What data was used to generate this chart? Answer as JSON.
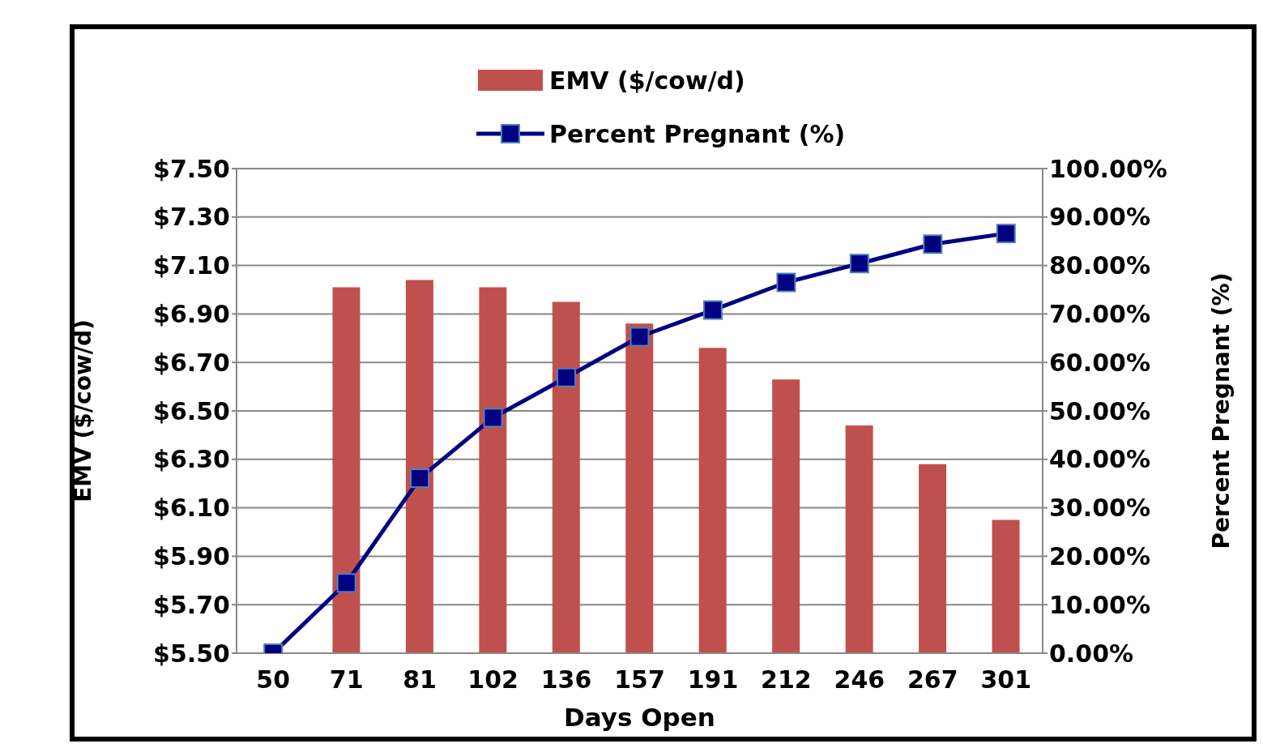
{
  "chart_data": {
    "type": "bar",
    "xlabel": "Days Open",
    "ylabel": "EMV ($/cow/d)",
    "y2label": "Percent Pregnant (%)",
    "categories": [
      "50",
      "71",
      "81",
      "102",
      "136",
      "157",
      "191",
      "212",
      "246",
      "267",
      "301"
    ],
    "series": [
      {
        "name": "EMV ($/cow/d)",
        "color": "#c0504d",
        "values": [
          null,
          7.01,
          7.04,
          7.01,
          6.95,
          6.86,
          6.76,
          6.63,
          6.44,
          6.28,
          6.05
        ]
      },
      {
        "name": "Percent Pregnant (%)",
        "type": "line",
        "axis": "y2",
        "color": "#000080",
        "marker": "square",
        "values": [
          0,
          14.5,
          36.1,
          48.6,
          56.9,
          65.3,
          70.8,
          76.5,
          80.4,
          84.4,
          86.6
        ]
      }
    ],
    "ylim": [
      5.5,
      7.5
    ],
    "yticks": [
      {
        "value": 5.5,
        "label": "$5.50"
      },
      {
        "value": 5.7,
        "label": "$5.70"
      },
      {
        "value": 5.9,
        "label": "$5.90"
      },
      {
        "value": 6.1,
        "label": "$6.10"
      },
      {
        "value": 6.3,
        "label": "$6.30"
      },
      {
        "value": 6.5,
        "label": "$6.50"
      },
      {
        "value": 6.7,
        "label": "$6.70"
      },
      {
        "value": 6.9,
        "label": "$6.90"
      },
      {
        "value": 7.1,
        "label": "$7.10"
      },
      {
        "value": 7.3,
        "label": "$7.30"
      },
      {
        "value": 7.5,
        "label": "$7.50"
      }
    ],
    "y2lim": [
      0,
      100
    ],
    "y2ticks": [
      {
        "value": 0,
        "label": "0.00%"
      },
      {
        "value": 10,
        "label": "10.00%"
      },
      {
        "value": 20,
        "label": "20.00%"
      },
      {
        "value": 30,
        "label": "30.00%"
      },
      {
        "value": 40,
        "label": "40.00%"
      },
      {
        "value": 50,
        "label": "50.00%"
      },
      {
        "value": 60,
        "label": "60.00%"
      },
      {
        "value": 70,
        "label": "70.00%"
      },
      {
        "value": 80,
        "label": "80.00%"
      },
      {
        "value": 90,
        "label": "90.00%"
      },
      {
        "value": 100,
        "label": "100.00%"
      }
    ],
    "grid": "y",
    "legend": "top"
  }
}
